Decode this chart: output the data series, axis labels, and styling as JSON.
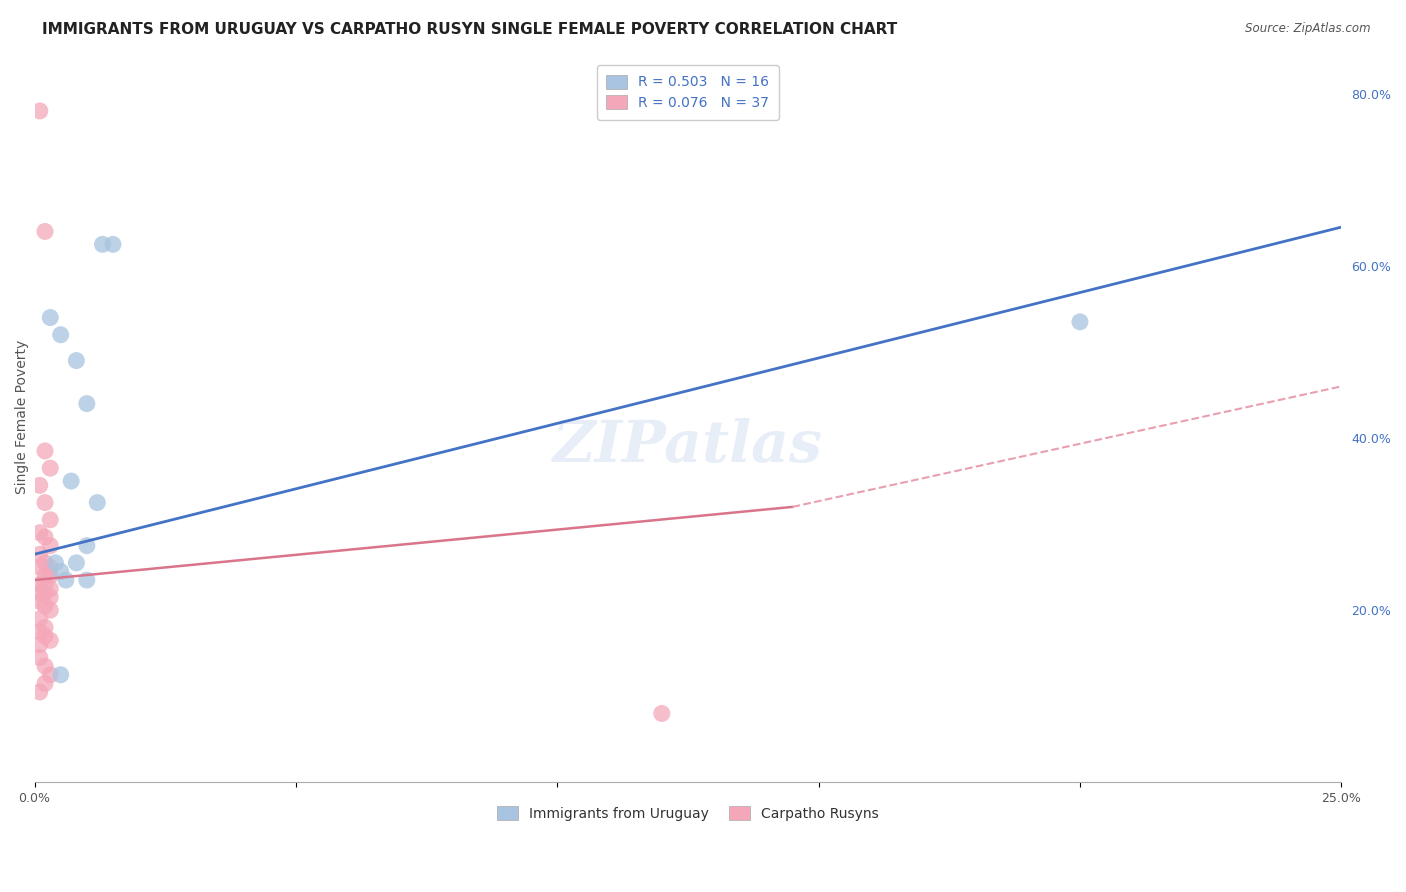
{
  "title": "IMMIGRANTS FROM URUGUAY VS CARPATHO RUSYN SINGLE FEMALE POVERTY CORRELATION CHART",
  "source": "Source: ZipAtlas.com",
  "ylabel": "Single Female Poverty",
  "xlim": [
    0.0,
    0.25
  ],
  "ylim": [
    0.0,
    0.85
  ],
  "xticks": [
    0.0,
    0.05,
    0.1,
    0.15,
    0.2,
    0.25
  ],
  "xticklabels": [
    "0.0%",
    "",
    "",
    "",
    "",
    "25.0%"
  ],
  "yticks_right": [
    0.2,
    0.4,
    0.6,
    0.8
  ],
  "ytick_right_labels": [
    "20.0%",
    "40.0%",
    "60.0%",
    "80.0%"
  ],
  "legend_label1": "R = 0.503   N = 16",
  "legend_label2": "R = 0.076   N = 37",
  "legend_label_bottom1": "Immigrants from Uruguay",
  "legend_label_bottom2": "Carpatho Rusyns",
  "blue_color": "#a8c4e0",
  "blue_line_color": "#4472C4",
  "pink_color": "#f4a7b9",
  "pink_line_color": "#d9748a",
  "pink_dash_color": "#e8a0b0",
  "watermark": "ZIPatlas",
  "blue_scatter_x": [
    0.003,
    0.005,
    0.008,
    0.01,
    0.013,
    0.015,
    0.01,
    0.007,
    0.004,
    0.005,
    0.006,
    0.008,
    0.012,
    0.005,
    0.2,
    0.01
  ],
  "blue_scatter_y": [
    0.54,
    0.52,
    0.49,
    0.44,
    0.625,
    0.625,
    0.275,
    0.35,
    0.255,
    0.245,
    0.235,
    0.255,
    0.325,
    0.125,
    0.535,
    0.235
  ],
  "pink_scatter_x": [
    0.001,
    0.002,
    0.003,
    0.001,
    0.002,
    0.003,
    0.001,
    0.002,
    0.003,
    0.001,
    0.002,
    0.003,
    0.001,
    0.002,
    0.003,
    0.001,
    0.002,
    0.003,
    0.001,
    0.002,
    0.003,
    0.001,
    0.002,
    0.003,
    0.001,
    0.002,
    0.001,
    0.002,
    0.003,
    0.001,
    0.001,
    0.002,
    0.003,
    0.002,
    0.001,
    0.002,
    0.12
  ],
  "pink_scatter_y": [
    0.78,
    0.385,
    0.365,
    0.345,
    0.325,
    0.305,
    0.29,
    0.285,
    0.275,
    0.265,
    0.255,
    0.25,
    0.25,
    0.24,
    0.24,
    0.23,
    0.23,
    0.225,
    0.22,
    0.22,
    0.215,
    0.21,
    0.205,
    0.2,
    0.19,
    0.18,
    0.175,
    0.17,
    0.165,
    0.16,
    0.145,
    0.135,
    0.125,
    0.115,
    0.105,
    0.64,
    0.08
  ],
  "blue_line_x": [
    0.0,
    0.25
  ],
  "blue_line_y": [
    0.265,
    0.645
  ],
  "pink_solid_line_x": [
    0.0,
    0.145
  ],
  "pink_solid_line_y": [
    0.235,
    0.32
  ],
  "pink_dash_line_x": [
    0.145,
    0.25
  ],
  "pink_dash_line_y": [
    0.32,
    0.46
  ],
  "background_color": "#ffffff",
  "grid_color": "#cccccc",
  "title_fontsize": 11,
  "axis_label_fontsize": 10,
  "tick_fontsize": 9,
  "legend_fontsize": 10,
  "watermark_fontsize": 42,
  "watermark_color": "#d0dff0",
  "watermark_alpha": 0.5
}
